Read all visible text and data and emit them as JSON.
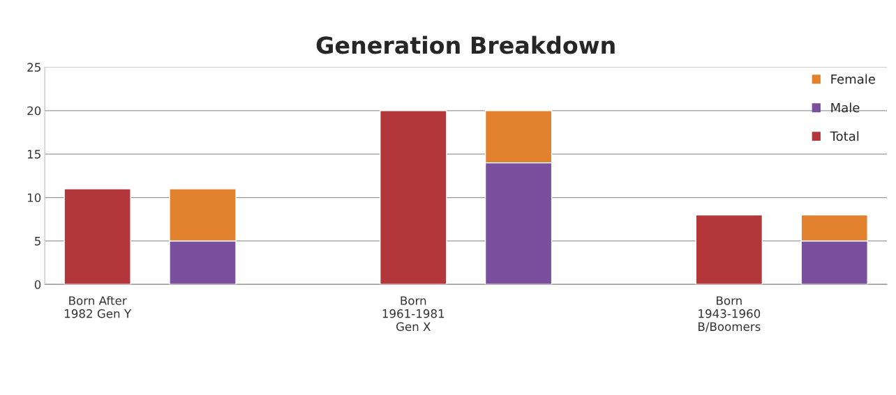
{
  "chart_data": {
    "type": "bar",
    "title": "Generation Breakdown",
    "categories": [
      "Born After 1982 Gen Y",
      null,
      null,
      "Born 1961-1981 Gen X",
      null,
      null,
      "Born 1943-1960 B/Boomers",
      null
    ],
    "series": [
      {
        "name": "Total",
        "color": "#b3373a",
        "values": [
          11,
          null,
          null,
          20,
          null,
          null,
          8,
          null
        ]
      },
      {
        "name": "Male",
        "color": "#7a4f9e",
        "values": [
          null,
          5,
          null,
          null,
          14,
          null,
          null,
          5
        ]
      },
      {
        "name": "Female",
        "color": "#e2822e",
        "values": [
          null,
          6,
          null,
          null,
          6,
          null,
          null,
          3
        ]
      }
    ],
    "stacked": true,
    "ylim": [
      0,
      25
    ],
    "yticks": [
      0,
      5,
      10,
      15,
      20,
      25
    ],
    "grid": "y",
    "legend": "top right"
  }
}
